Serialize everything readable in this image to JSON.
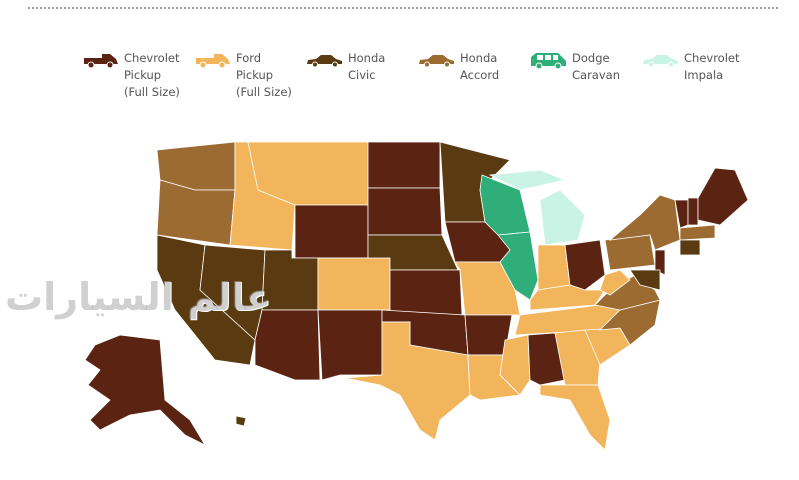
{
  "watermark": "عالم السيارات",
  "legend": [
    {
      "key": "chevy_pickup",
      "label": "Chevrolet\nPickup\n(Full Size)",
      "color": "#5b2412",
      "icon": "pickup-truck-icon"
    },
    {
      "key": "ford_pickup",
      "label": "Ford\nPickup\n(Full Size)",
      "color": "#f3b55c",
      "icon": "pickup-truck-icon"
    },
    {
      "key": "civic",
      "label": "Honda\nCivic",
      "color": "#5a3a10",
      "icon": "sedan-icon"
    },
    {
      "key": "accord",
      "label": "Honda\nAccord",
      "color": "#9c6b32",
      "icon": "sedan-icon"
    },
    {
      "key": "caravan",
      "label": "Dodge\nCaravan",
      "color": "#2fae79",
      "icon": "minivan-icon"
    },
    {
      "key": "impala",
      "label": "Chevrolet\nImpala",
      "color": "#c9f3e4",
      "icon": "sedan-icon"
    }
  ],
  "states": {
    "WA": "accord",
    "OR": "accord",
    "CA": "civic",
    "NV": "civic",
    "ID": "ford_pickup",
    "MT": "ford_pickup",
    "WY": "chevy_pickup",
    "UT": "civic",
    "CO": "ford_pickup",
    "AZ": "chevy_pickup",
    "NM": "chevy_pickup",
    "ND": "chevy_pickup",
    "SD": "chevy_pickup",
    "NE": "civic",
    "KS": "chevy_pickup",
    "OK": "chevy_pickup",
    "TX": "ford_pickup",
    "MN": "civic",
    "IA": "chevy_pickup",
    "MO": "ford_pickup",
    "AR": "chevy_pickup",
    "LA": "ford_pickup",
    "WI": "caravan",
    "IL": "caravan",
    "MI": "impala",
    "MI-UP": "impala",
    "IN": "ford_pickup",
    "OH": "chevy_pickup",
    "KY": "ford_pickup",
    "TN": "ford_pickup",
    "MS": "ford_pickup",
    "AL": "chevy_pickup",
    "GA": "ford_pickup",
    "FL": "ford_pickup",
    "SC": "ford_pickup",
    "NC": "accord",
    "VA": "accord",
    "WV": "ford_pickup",
    "PA": "accord",
    "NY": "accord",
    "NJ": "chevy_pickup",
    "MD": "civic",
    "VT": "chevy_pickup",
    "NH": "chevy_pickup",
    "ME": "chevy_pickup",
    "MA": "accord",
    "CT": "civic",
    "AK": "chevy_pickup",
    "HI": "civic"
  }
}
